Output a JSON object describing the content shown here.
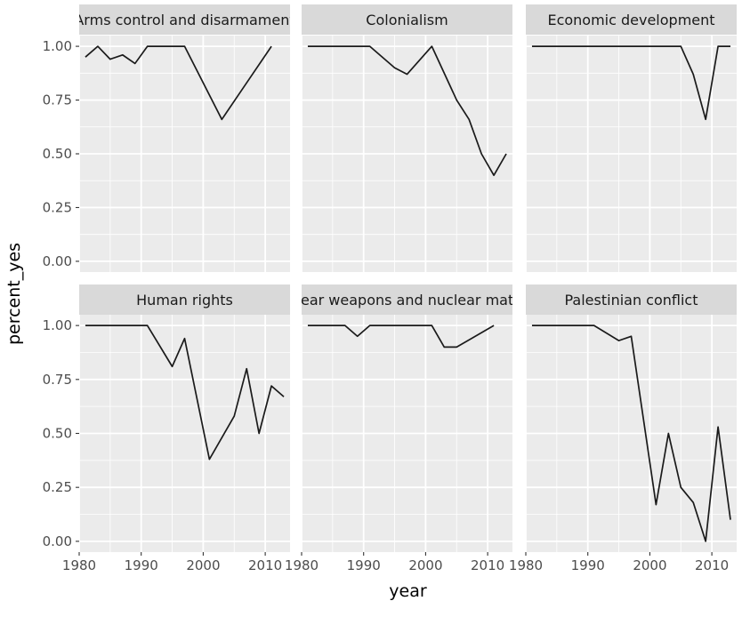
{
  "chart_data": {
    "type": "line",
    "xlabel": "year",
    "ylabel": "percent_yes",
    "xlim": [
      1980,
      2014
    ],
    "ylim": [
      -0.05,
      1.05
    ],
    "x_ticks": [
      1980,
      1990,
      2000,
      2010
    ],
    "x_tick_labels": [
      "1980",
      "1990",
      "2000",
      "2010"
    ],
    "y_ticks": [
      0,
      0.25,
      0.5,
      0.75,
      1.0
    ],
    "y_tick_labels": [
      "0.00",
      "0.25",
      "0.50",
      "0.75",
      "1.00"
    ],
    "grid": true,
    "panel_background": "#ebebeb",
    "strip_background": "#d9d9d9",
    "grid_color": "#ffffff",
    "line_color": "#1a1a1a",
    "facets": [
      {
        "strip": "Arms control and disarmament",
        "x": [
          1981,
          1983,
          1985,
          1987,
          1989,
          1991,
          1993,
          1995,
          1997,
          2003,
          2007,
          2011
        ],
        "y": [
          0.95,
          1.0,
          0.94,
          0.96,
          0.92,
          1.0,
          1.0,
          1.0,
          1.0,
          0.66,
          0.83,
          1.0
        ]
      },
      {
        "strip": "Colonialism",
        "x": [
          1981,
          1991,
          1995,
          1997,
          2001,
          2005,
          2007,
          2009,
          2011,
          2013
        ],
        "y": [
          1.0,
          1.0,
          0.9,
          0.87,
          1.0,
          0.75,
          0.66,
          0.5,
          0.4,
          0.5
        ]
      },
      {
        "strip": "Economic development",
        "x": [
          1981,
          2005,
          2007,
          2009,
          2011,
          2013
        ],
        "y": [
          1.0,
          1.0,
          0.87,
          0.66,
          1.0,
          1.0
        ]
      },
      {
        "strip": "Human rights",
        "x": [
          1981,
          1991,
          1995,
          1997,
          2001,
          2005,
          2007,
          2009,
          2011,
          2013
        ],
        "y": [
          1.0,
          1.0,
          0.81,
          0.94,
          0.38,
          0.58,
          0.8,
          0.5,
          0.72,
          0.67
        ]
      },
      {
        "strip": "Nuclear weapons and nuclear material",
        "x": [
          1981,
          1987,
          1989,
          1991,
          2001,
          2003,
          2005,
          2011
        ],
        "y": [
          1.0,
          1.0,
          0.95,
          1.0,
          1.0,
          0.9,
          0.9,
          1.0
        ]
      },
      {
        "strip": "Palestinian conflict",
        "x": [
          1981,
          1991,
          1995,
          1997,
          2001,
          2003,
          2005,
          2007,
          2009,
          2011,
          2013
        ],
        "y": [
          1.0,
          1.0,
          0.93,
          0.95,
          0.17,
          0.5,
          0.25,
          0.18,
          0.0,
          0.53,
          0.1
        ]
      }
    ]
  }
}
